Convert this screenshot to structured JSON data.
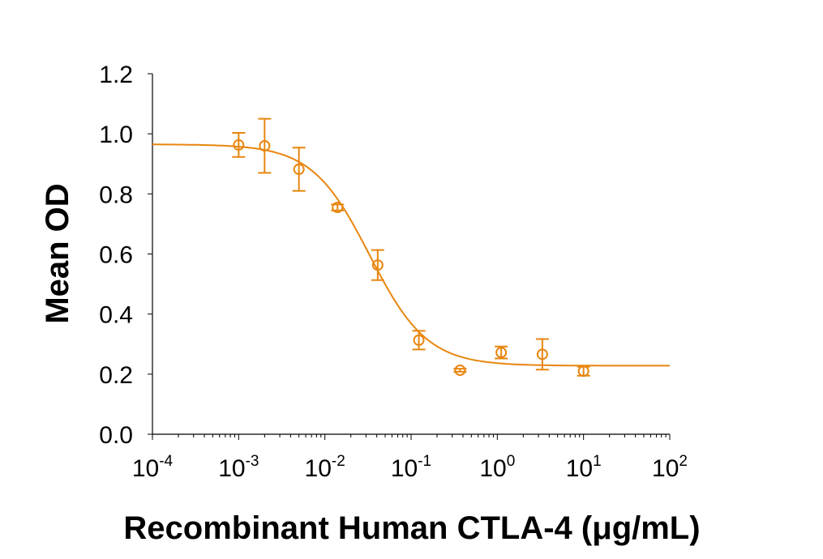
{
  "chart_data": {
    "type": "scatter",
    "title": "",
    "xlabel": "Recombinant Human CTLA-4 (μg/mL)",
    "ylabel": "Mean OD",
    "x_scale": "log",
    "xlim": [
      0.0001,
      100
    ],
    "ylim": [
      0,
      1.2
    ],
    "x_tick_labels": [
      {
        "base": "10",
        "exp": "-4"
      },
      {
        "base": "10",
        "exp": "-3"
      },
      {
        "base": "10",
        "exp": "-2"
      },
      {
        "base": "10",
        "exp": "-1"
      },
      {
        "base": "10",
        "exp": "0"
      },
      {
        "base": "10",
        "exp": "1"
      },
      {
        "base": "10",
        "exp": "2"
      }
    ],
    "y_ticks": [
      "0.0",
      "0.2",
      "0.4",
      "0.6",
      "0.8",
      "1.0",
      "1.2"
    ],
    "grid": false,
    "legend": "none",
    "color": "#E8860F",
    "points": [
      {
        "x": 0.001,
        "y": 0.963,
        "err": 0.04
      },
      {
        "x": 0.002,
        "y": 0.96,
        "err": 0.09
      },
      {
        "x": 0.005,
        "y": 0.882,
        "err": 0.072
      },
      {
        "x": 0.014,
        "y": 0.755,
        "err": 0.01
      },
      {
        "x": 0.041,
        "y": 0.563,
        "err": 0.05
      },
      {
        "x": 0.123,
        "y": 0.313,
        "err": 0.031
      },
      {
        "x": 0.37,
        "y": 0.213,
        "err": 0.005
      },
      {
        "x": 1.11,
        "y": 0.272,
        "err": 0.02
      },
      {
        "x": 3.33,
        "y": 0.266,
        "err": 0.051
      },
      {
        "x": 10,
        "y": 0.21,
        "err": 0.015
      }
    ],
    "fit": {
      "model": "4PL",
      "top": 0.965,
      "bottom": 0.228,
      "ec50": 0.033,
      "hill": 1.3
    }
  }
}
